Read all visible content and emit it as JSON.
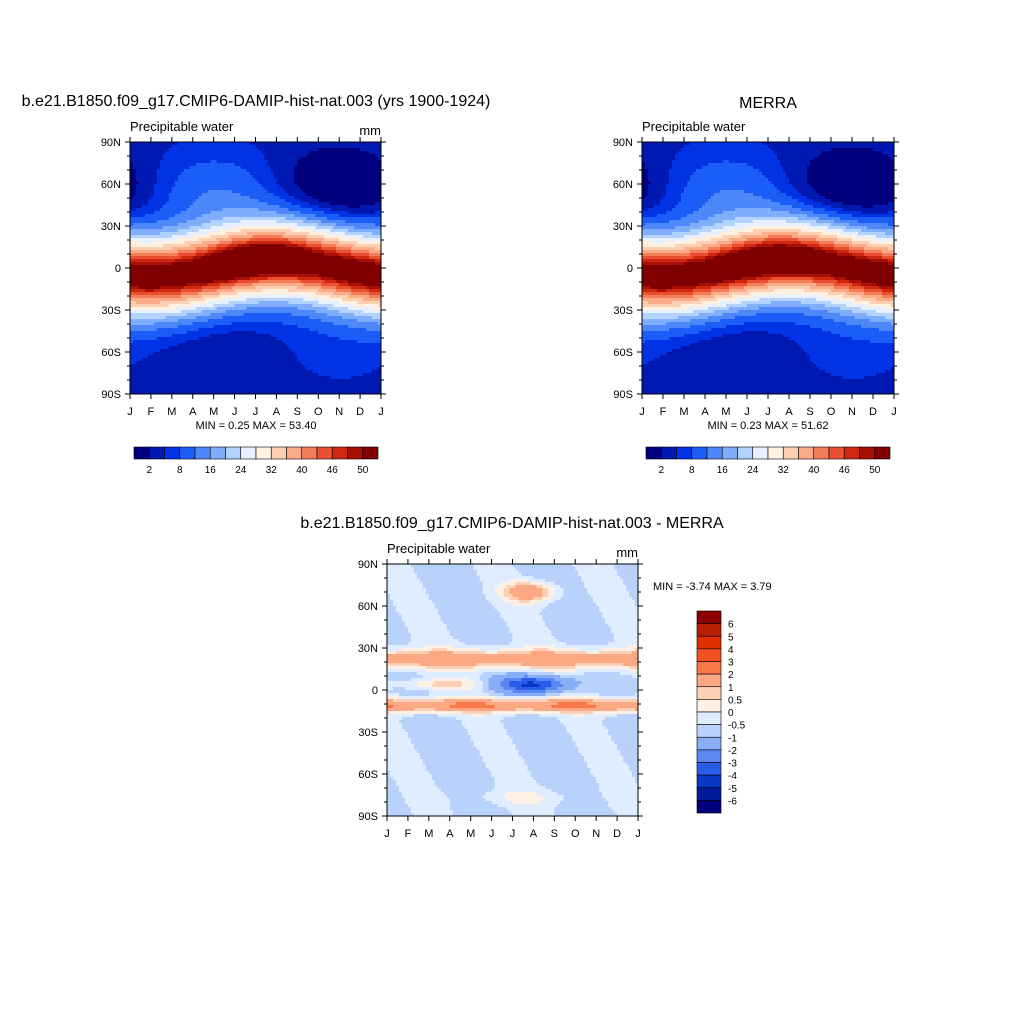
{
  "panels": [
    {
      "title": "b.e21.B1850.f09_g17.CMIP6-DAMIP-hist-nat.003 (yrs 1900-1924)",
      "left_label": "Precipitable water",
      "right_label": "mm",
      "stats": "MIN =   0.25 MAX =  53.40"
    },
    {
      "title": "MERRA",
      "left_label": "Precipitable water",
      "right_label": "",
      "stats": "MIN =   0.23 MAX =  51.62"
    },
    {
      "title": "b.e21.B1850.f09_g17.CMIP6-DAMIP-hist-nat.003 - MERRA",
      "left_label": "Precipitable water",
      "right_label": "mm",
      "stats": "MIN =  -3.74 MAX =   3.79"
    }
  ],
  "chart_data": [
    {
      "type": "heatmap",
      "title": "b.e21.B1850.f09_g17.CMIP6-DAMIP-hist-nat.003 (yrs 1900-1924)",
      "subtitle_left": "Precipitable water",
      "units": "mm",
      "x_ticks": [
        "J",
        "F",
        "M",
        "A",
        "M",
        "J",
        "J",
        "A",
        "S",
        "O",
        "N",
        "D",
        "J"
      ],
      "y_ticks": [
        "90N",
        "60N",
        "30N",
        "0",
        "30S",
        "60S",
        "90S"
      ],
      "ylim": [
        -90,
        90
      ],
      "min": 0.25,
      "max": 53.4,
      "colorbar_labels": [
        "2",
        "8",
        "16",
        "24",
        "32",
        "40",
        "46",
        "50"
      ],
      "colorbar_colors": [
        "#00007f",
        "#0019b3",
        "#0033e6",
        "#1a5ef7",
        "#4d88fa",
        "#80aefc",
        "#b3d2fe",
        "#e6f0ff",
        "#fff0e0",
        "#fdd0b4",
        "#fbab87",
        "#f47d5c",
        "#e85030",
        "#d02810",
        "#a81006",
        "#7f0000"
      ],
      "field": "climatology_annual_cycle"
    },
    {
      "type": "heatmap",
      "title": "MERRA",
      "subtitle_left": "Precipitable water",
      "x_ticks": [
        "J",
        "F",
        "M",
        "A",
        "M",
        "J",
        "J",
        "A",
        "S",
        "O",
        "N",
        "D",
        "J"
      ],
      "y_ticks": [
        "90N",
        "60N",
        "30N",
        "0",
        "30S",
        "60S",
        "90S"
      ],
      "ylim": [
        -90,
        90
      ],
      "min": 0.23,
      "max": 51.62,
      "colorbar_labels": [
        "2",
        "8",
        "16",
        "24",
        "32",
        "40",
        "46",
        "50"
      ],
      "colorbar_colors": [
        "#00007f",
        "#0019b3",
        "#0033e6",
        "#1a5ef7",
        "#4d88fa",
        "#80aefc",
        "#b3d2fe",
        "#e6f0ff",
        "#fff0e0",
        "#fdd0b4",
        "#fbab87",
        "#f47d5c",
        "#e85030",
        "#d02810",
        "#a81006",
        "#7f0000"
      ],
      "field": "climatology_annual_cycle"
    },
    {
      "type": "heatmap",
      "title": "b.e21.B1850.f09_g17.CMIP6-DAMIP-hist-nat.003 - MERRA",
      "subtitle_left": "Precipitable water",
      "units": "mm",
      "x_ticks": [
        "J",
        "F",
        "M",
        "A",
        "M",
        "J",
        "J",
        "A",
        "S",
        "O",
        "N",
        "D",
        "J"
      ],
      "y_ticks": [
        "90N",
        "60N",
        "30N",
        "0",
        "30S",
        "60S",
        "90S"
      ],
      "ylim": [
        -90,
        90
      ],
      "min": -3.74,
      "max": 3.79,
      "colorbar_labels": [
        "6",
        "5",
        "4",
        "3",
        "2",
        "1",
        "0.5",
        "0",
        "-0.5",
        "-1",
        "-2",
        "-3",
        "-4",
        "-5",
        "-6"
      ],
      "colorbar_colors": [
        "#8c0000",
        "#b81e00",
        "#e03000",
        "#f45020",
        "#fa7848",
        "#fca882",
        "#fdd0b8",
        "#fff0e4",
        "#e0ecff",
        "#b8d2fc",
        "#88aef8",
        "#5a88f2",
        "#2a5cec",
        "#0a36c8",
        "#001a9a",
        "#00007f"
      ],
      "field": "difference"
    }
  ]
}
